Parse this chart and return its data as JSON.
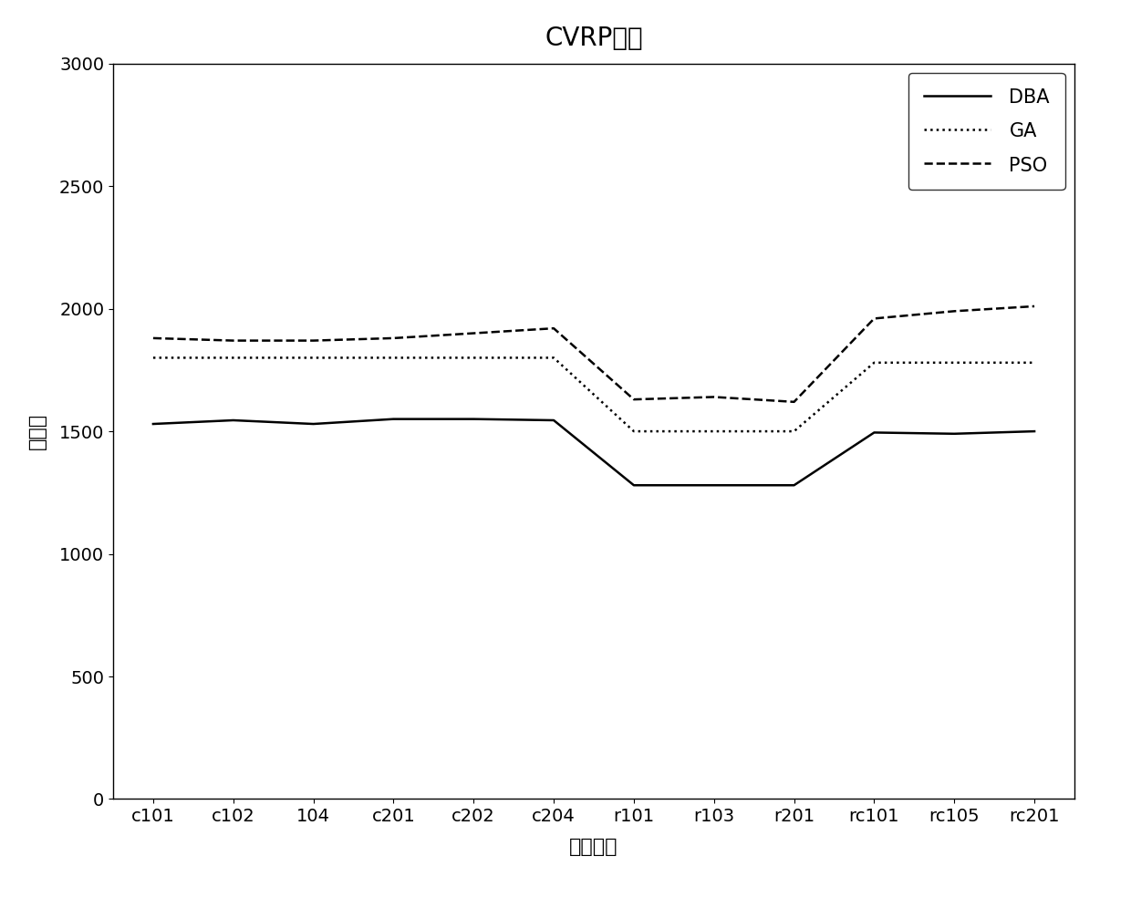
{
  "title": "CVRP问题",
  "xlabel": "测试实例",
  "ylabel": "平均値",
  "categories": [
    "c101",
    "c102",
    "104",
    "c201",
    "c202",
    "c204",
    "r101",
    "r103",
    "r201",
    "rc101",
    "rc105",
    "rc201"
  ],
  "DBA": [
    1530,
    1545,
    1530,
    1550,
    1550,
    1545,
    1280,
    1280,
    1280,
    1495,
    1490,
    1500
  ],
  "GA": [
    1800,
    1800,
    1800,
    1800,
    1800,
    1800,
    1500,
    1500,
    1500,
    1780,
    1780,
    1780
  ],
  "PSO": [
    1880,
    1870,
    1870,
    1880,
    1900,
    1920,
    1630,
    1640,
    1620,
    1960,
    1990,
    2010
  ],
  "ylim": [
    0,
    3000
  ],
  "yticks": [
    0,
    500,
    1000,
    1500,
    2000,
    2500,
    3000
  ],
  "legend_loc": "upper right",
  "DBA_linestyle": "-",
  "GA_linestyle": ":",
  "PSO_linestyle": "--",
  "line_color": "#000000",
  "linewidth": 1.8,
  "fontsize_title": 20,
  "fontsize_labels": 16,
  "fontsize_ticks": 14,
  "fontsize_legend": 15
}
